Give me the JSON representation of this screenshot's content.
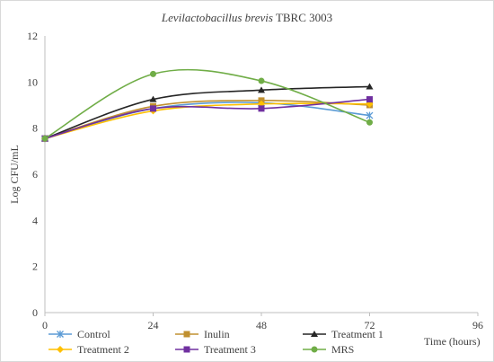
{
  "chart_data": {
    "type": "line",
    "title_italic": "Levilactobacillus brevis",
    "title_plain": "TBRC 3003",
    "xlabel": "Time (hours)",
    "ylabel": "Log CFU/mL",
    "x_ticks": [
      0,
      24,
      48,
      72,
      96
    ],
    "y_ticks": [
      0,
      2,
      4,
      6,
      8,
      10,
      12
    ],
    "xlim": [
      0,
      96
    ],
    "ylim": [
      0,
      12
    ],
    "grid": false,
    "legend_position": "bottom",
    "smoothed": true,
    "series": [
      {
        "name": "Control",
        "color": "#5b9bd5",
        "marker": "asterisk",
        "x": [
          0,
          24,
          48,
          72
        ],
        "y": [
          7.55,
          8.85,
          9.1,
          8.55
        ]
      },
      {
        "name": "Inulin",
        "color": "#c09030",
        "marker": "square",
        "x": [
          0,
          24,
          48,
          72
        ],
        "y": [
          7.55,
          8.95,
          9.2,
          9.0
        ]
      },
      {
        "name": "Treatment 1",
        "color": "#262626",
        "marker": "triangle",
        "x": [
          0,
          24,
          48,
          72
        ],
        "y": [
          7.55,
          9.25,
          9.65,
          9.8
        ]
      },
      {
        "name": "Treatment 2",
        "color": "#ffc000",
        "marker": "diamond",
        "x": [
          0,
          24,
          48,
          72
        ],
        "y": [
          7.55,
          8.75,
          9.05,
          9.05
        ]
      },
      {
        "name": "Treatment 3",
        "color": "#7030a0",
        "marker": "square",
        "x": [
          0,
          24,
          48,
          72
        ],
        "y": [
          7.55,
          8.85,
          8.85,
          9.25
        ]
      },
      {
        "name": "MRS",
        "color": "#70ad47",
        "marker": "circle",
        "x": [
          0,
          24,
          48,
          72
        ],
        "y": [
          7.55,
          10.35,
          10.05,
          8.25
        ]
      }
    ]
  }
}
